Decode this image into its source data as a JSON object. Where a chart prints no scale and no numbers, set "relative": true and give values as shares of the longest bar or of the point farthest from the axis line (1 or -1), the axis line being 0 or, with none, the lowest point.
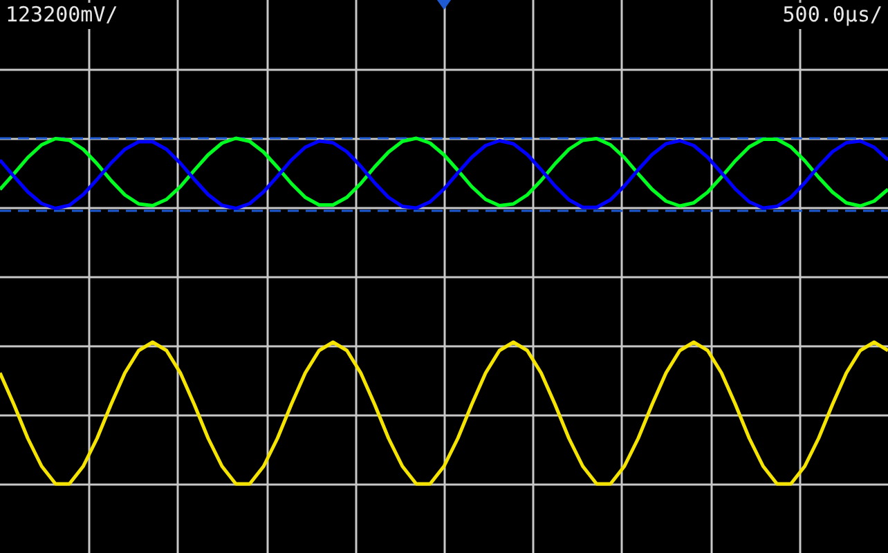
{
  "chart_data": {
    "type": "line",
    "relative": true,
    "grid": true,
    "categories": [
      null,
      null,
      null,
      null,
      null,
      null,
      null,
      null,
      null,
      null,
      null,
      null,
      null,
      null,
      null,
      null,
      null,
      null,
      null,
      null,
      null,
      null,
      null,
      null,
      null,
      null,
      null,
      null,
      null,
      null,
      null,
      null,
      null,
      null,
      null,
      null,
      null,
      null,
      null,
      null,
      null,
      null,
      null,
      null,
      null,
      null,
      null,
      null,
      null,
      null,
      null,
      null,
      null,
      null,
      null,
      null,
      null,
      null,
      null,
      null,
      null,
      null,
      null,
      null,
      null
    ],
    "annotations": [
      "123200mV/",
      "500.0µs/"
    ],
    "ref_lines": [
      {
        "axis": "y",
        "value": 1.0,
        "label": null,
        "color": "#1e5ad2",
        "line_style": "dashed"
      },
      {
        "axis": "y",
        "value": 0.79,
        "label": null,
        "color": "#1e5ad2",
        "line_style": "dashed"
      }
    ],
    "series": [
      {
        "color": "#0000ff",
        "values": [
          0.937,
          0.89,
          0.845,
          0.811,
          0.797,
          0.806,
          0.837,
          0.881,
          0.928,
          0.968,
          0.99,
          0.99,
          0.968,
          0.928,
          0.881,
          0.837,
          0.806,
          0.797,
          0.811,
          0.845,
          0.89,
          0.937,
          0.974,
          0.992,
          0.987,
          0.961,
          0.919,
          0.871,
          0.829,
          0.803,
          0.798,
          0.816,
          0.853,
          0.9,
          0.945,
          0.979,
          0.993,
          0.984,
          0.953,
          0.909,
          0.862,
          0.822,
          0.8,
          0.8,
          0.822,
          0.862,
          0.909,
          0.953,
          0.984,
          0.993,
          0.979,
          0.945,
          0.9,
          0.853,
          0.816,
          0.798,
          0.803,
          0.829,
          0.871,
          0.919,
          0.961,
          0.987,
          0.992,
          0.974,
          0.937
        ]
      },
      {
        "color": "#00ff20",
        "values": [
          0.852,
          0.897,
          0.944,
          0.981,
          0.999,
          0.994,
          0.968,
          0.926,
          0.878,
          0.836,
          0.81,
          0.805,
          0.823,
          0.86,
          0.907,
          0.952,
          0.986,
          1.0,
          0.991,
          0.96,
          0.916,
          0.869,
          0.829,
          0.807,
          0.807,
          0.829,
          0.869,
          0.917,
          0.96,
          0.991,
          1.0,
          0.986,
          0.952,
          0.907,
          0.86,
          0.823,
          0.805,
          0.81,
          0.836,
          0.878,
          0.926,
          0.968,
          0.994,
          0.999,
          0.981,
          0.944,
          0.897,
          0.852,
          0.818,
          0.804,
          0.813,
          0.844,
          0.888,
          0.935,
          0.975,
          0.997,
          0.997,
          0.975,
          0.935,
          0.887,
          0.844,
          0.813,
          0.804,
          0.818,
          0.852
        ]
      },
      {
        "color": "#f5e400",
        "values": [
          0.321,
          0.23,
          0.132,
          0.051,
          0,
          0,
          0.051,
          0.132,
          0.23,
          0.321,
          0.386,
          0.41,
          0.386,
          0.321,
          0.23,
          0.132,
          0.051,
          0,
          0,
          0.051,
          0.132,
          0.23,
          0.321,
          0.386,
          0.41,
          0.386,
          0.321,
          0.23,
          0.132,
          0.051,
          0,
          0,
          0.051,
          0.132,
          0.23,
          0.321,
          0.386,
          0.41,
          0.386,
          0.321,
          0.23,
          0.132,
          0.051,
          0,
          0,
          0.051,
          0.132,
          0.23,
          0.321,
          0.386,
          0.41,
          0.386,
          0.321,
          0.23,
          0.132,
          0.051,
          0,
          0,
          0.051,
          0.132,
          0.23,
          0.321,
          0.386,
          0.41,
          0.386
        ]
      }
    ]
  }
}
